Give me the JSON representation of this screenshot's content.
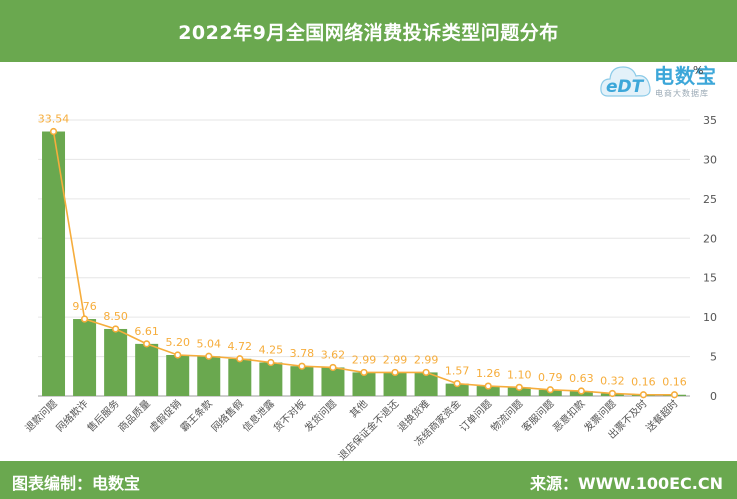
{
  "header": {
    "title": "2022年9月全国网络消费投诉类型问题分布"
  },
  "unit_label": "%",
  "logo": {
    "brand": "电数宝",
    "sub": "电商大数据库",
    "mark": "eDT"
  },
  "footer": {
    "left": "图表编制：电数宝",
    "right": "来源：WWW.100EC.CN"
  },
  "colors": {
    "header": "#6aa84f",
    "bar": "#6aa84f",
    "line": "#f6ad3c",
    "grid": "#e6e6e6"
  },
  "chart_data": {
    "type": "bar",
    "categories": [
      "退款问题",
      "网络欺诈",
      "售后服务",
      "商品质量",
      "虚假促销",
      "霸王条款",
      "网络售假",
      "信息泄露",
      "货不对板",
      "发货问题",
      "其他",
      "退店保证金不退还",
      "退换货难",
      "冻结商家资金",
      "订单问题",
      "物流问题",
      "客服问题",
      "恶意扣款",
      "发票问题",
      "出票不及时",
      "送餐超时"
    ],
    "series": [
      {
        "type": "bar",
        "values": [
          33.54,
          9.76,
          8.5,
          6.61,
          5.2,
          5.04,
          4.72,
          4.25,
          3.78,
          3.62,
          2.99,
          2.99,
          2.99,
          1.57,
          1.26,
          1.1,
          0.79,
          0.63,
          0.32,
          0.16,
          0.16
        ]
      },
      {
        "type": "line",
        "values": [
          33.54,
          9.76,
          8.5,
          6.61,
          5.2,
          5.04,
          4.72,
          4.25,
          3.78,
          3.62,
          2.99,
          2.99,
          2.99,
          1.57,
          1.26,
          1.1,
          0.79,
          0.63,
          0.32,
          0.16,
          0.16
        ]
      }
    ],
    "data_labels": [
      "33.54",
      "9.76",
      "8.50",
      "6.61",
      "5.20",
      "5.04",
      "4.72",
      "4.25",
      "3.78",
      "3.62",
      "2.99",
      "2.99",
      "2.99",
      "1.57",
      "1.26",
      "1.10",
      "0.79",
      "0.63",
      "0.32",
      "0.16",
      "0.16"
    ],
    "y_ticks": [
      "0",
      "5",
      "10",
      "15",
      "20",
      "25",
      "30",
      "35"
    ],
    "ylim": [
      0,
      35
    ],
    "y_axis_side": "right",
    "grid": true
  }
}
